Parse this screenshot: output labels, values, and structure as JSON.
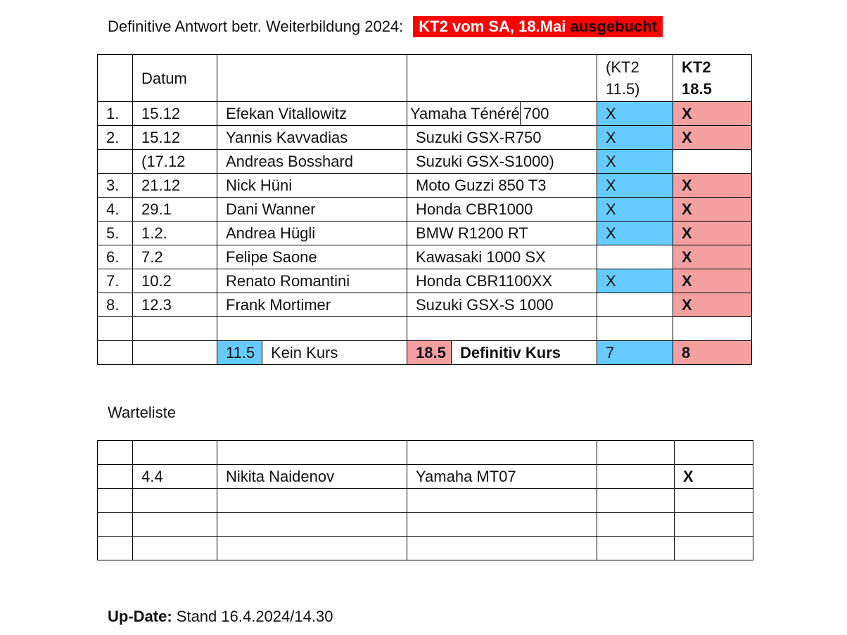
{
  "title": {
    "text": "Definitive Antwort betr. Weiterbildung 2024:",
    "badge_main": "KT2 vom SA, 18.Mai ",
    "badge_accent": "ausgebucht"
  },
  "main_table": {
    "headers": [
      "",
      "Datum",
      "",
      "",
      "(KT2\n11.5)",
      "KT2\n18.5"
    ],
    "rows": [
      {
        "nr": "1.",
        "datum": "15.12",
        "name": "Efekan Vitallowitz",
        "bike_a": "Yamaha Ténéré",
        "bike_b": "700",
        "kt2_115": "X",
        "kt2_185": "X"
      },
      {
        "nr": "2.",
        "datum": "15.12",
        "name": "Yannis Kavvadias",
        "bike": "Suzuki GSX-R750",
        "kt2_115": "X",
        "kt2_185": "X"
      },
      {
        "nr": "",
        "datum": "(17.12",
        "name": "Andreas Bosshard",
        "bike": "Suzuki GSX-S1000)",
        "kt2_115": "X",
        "kt2_185": ""
      },
      {
        "nr": "3.",
        "datum": "21.12",
        "name": "Nick Hüni",
        "bike": "Moto Guzzi 850 T3",
        "kt2_115": "X",
        "kt2_185": "X"
      },
      {
        "nr": "4.",
        "datum": "29.1",
        "name": "Dani Wanner",
        "bike": "Honda CBR1000",
        "kt2_115": "X",
        "kt2_185": "X"
      },
      {
        "nr": "5.",
        "datum": "1.2.",
        "name": "Andrea Hügli",
        "bike": "BMW R1200 RT",
        "kt2_115": "X",
        "kt2_185": "X"
      },
      {
        "nr": "6.",
        "datum": "7.2",
        "name": "Felipe Saone",
        "bike": "Kawasaki 1000 SX",
        "kt2_115": "",
        "kt2_185": "X"
      },
      {
        "nr": "7.",
        "datum": "10.2",
        "name": "Renato Romantini",
        "bike": "Honda CBR1100XX",
        "kt2_115": "X",
        "kt2_185": "X"
      },
      {
        "nr": "8.",
        "datum": "12.3",
        "name": "Frank Mortimer",
        "bike": "Suzuki GSX-S 1000",
        "kt2_115": "",
        "kt2_185": "X"
      }
    ],
    "summary": {
      "date_115": "11.5",
      "label_115": "Kein Kurs",
      "date_185": "18.5",
      "label_185": "Definitiv Kurs",
      "count_115": "7",
      "count_185": "8"
    }
  },
  "waitlist": {
    "label": "Warteliste",
    "rows": [
      {
        "nr": "",
        "datum": "",
        "name": "",
        "bike": "",
        "kt2_115": "",
        "kt2_185": ""
      },
      {
        "nr": "",
        "datum": "4.4",
        "name": "Nikita Naidenov",
        "bike": "Yamaha MT07",
        "kt2_115": "",
        "kt2_185": "X"
      },
      {
        "nr": "",
        "datum": "",
        "name": "",
        "bike": "",
        "kt2_115": "",
        "kt2_185": ""
      },
      {
        "nr": "",
        "datum": "",
        "name": "",
        "bike": "",
        "kt2_115": "",
        "kt2_185": ""
      },
      {
        "nr": "",
        "datum": "",
        "name": "",
        "bike": "",
        "kt2_115": "",
        "kt2_185": ""
      }
    ]
  },
  "update": {
    "label": "Up-Date:",
    "text": " Stand 16.4.2024/14.30"
  },
  "colors": {
    "badge": "#ff0000",
    "blue": "#66ccff",
    "red": "#f4a0a0"
  }
}
